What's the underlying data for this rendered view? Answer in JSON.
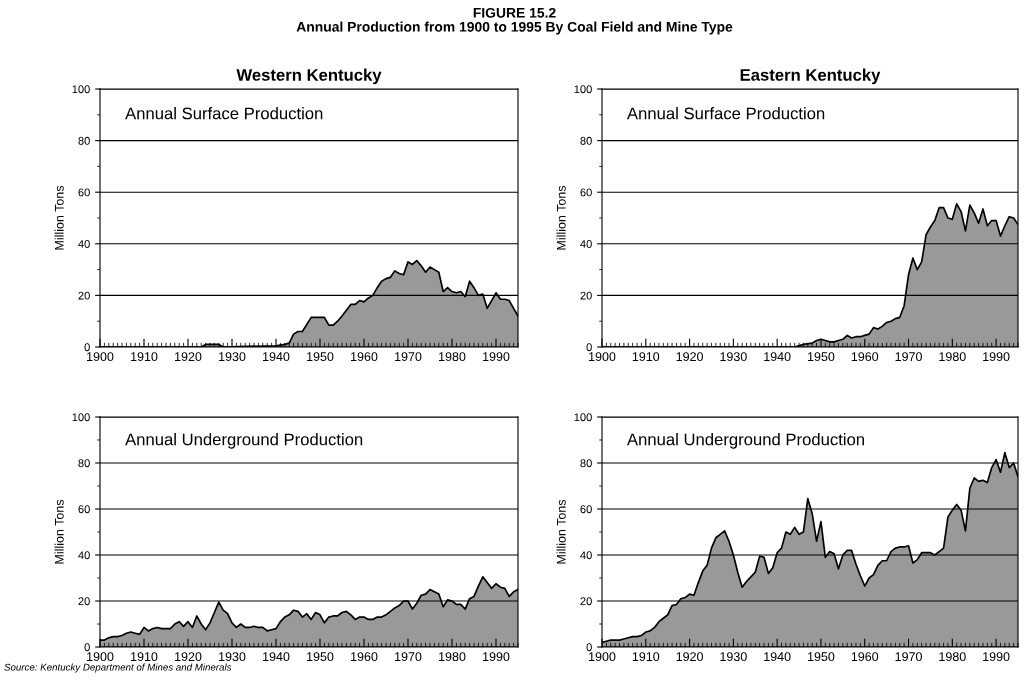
{
  "chart_data": [
    {
      "type": "area",
      "title": "Western Kentucky",
      "ylabel": "Million Tons",
      "annotations": [
        "Annual Surface Production",
        "FIGURE 15.2",
        "Annual Production from 1900 to 1995 By Coal Field and Mine Type"
      ],
      "x": [
        1900,
        1923,
        1924,
        1927,
        1928,
        1940,
        1942,
        1943,
        1944,
        1945,
        1946,
        1948,
        1950,
        1951,
        1952,
        1953,
        1954,
        1955,
        1957,
        1958,
        1959,
        1960,
        1961,
        1962,
        1963,
        1964,
        1965,
        1966,
        1967,
        1968,
        1969,
        1970,
        1971,
        1972,
        1973,
        1974,
        1975,
        1976,
        1977,
        1978,
        1979,
        1980,
        1981,
        1982,
        1983,
        1984,
        1985,
        1986,
        1987,
        1988,
        1989,
        1990,
        1991,
        1992,
        1993,
        1994,
        1995
      ],
      "series": [
        {
          "color": "#999999",
          "values": [
            0,
            0,
            1,
            1,
            0,
            0.5,
            1,
            1.5,
            5,
            6,
            6,
            11.5,
            11.5,
            11.5,
            8.5,
            8.5,
            10,
            12,
            16.5,
            16.5,
            18,
            17.5,
            19,
            20,
            23,
            25.5,
            26.5,
            27,
            29.5,
            28.5,
            28,
            33,
            32,
            33.5,
            31.5,
            29,
            31,
            30,
            29,
            21.5,
            23,
            21.5,
            21,
            21.5,
            19.5,
            25.5,
            23,
            20,
            20.5,
            15,
            18,
            21,
            18.5,
            18.5,
            18,
            15,
            12
          ]
        }
      ],
      "xlim": [
        1900,
        1995
      ],
      "ylim": [
        0,
        100
      ],
      "xticks": [
        1900,
        1910,
        1920,
        1930,
        1940,
        1950,
        1960,
        1970,
        1980,
        1990
      ],
      "yticks": [
        0,
        20,
        40,
        60,
        80,
        100
      ],
      "grid": "y"
    },
    {
      "type": "area",
      "title": "Eastern Kentucky",
      "ylabel": "Million Tons",
      "annotations": [
        "Annual Surface Production"
      ],
      "x": [
        1900,
        1944,
        1946,
        1948,
        1949,
        1950,
        1951,
        1952,
        1953,
        1954,
        1955,
        1956,
        1957,
        1958,
        1959,
        1960,
        1961,
        1962,
        1963,
        1964,
        1965,
        1966,
        1967,
        1968,
        1969,
        1970,
        1971,
        1972,
        1973,
        1974,
        1975,
        1976,
        1977,
        1978,
        1979,
        1980,
        1981,
        1982,
        1983,
        1984,
        1985,
        1986,
        1987,
        1988,
        1989,
        1990,
        1991,
        1992,
        1993,
        1994,
        1995
      ],
      "series": [
        {
          "color": "#999999",
          "values": [
            0,
            0,
            1,
            1.5,
            2.5,
            3,
            2.5,
            2,
            2,
            2.5,
            3,
            4.5,
            3.5,
            4,
            4,
            4.5,
            5,
            7.5,
            7,
            8,
            9.5,
            10,
            11,
            11.5,
            16,
            28,
            34.5,
            30,
            33,
            43.5,
            46.5,
            49,
            54,
            54,
            50,
            49.5,
            55.5,
            52.5,
            45,
            55,
            52,
            48,
            53.5,
            47,
            49,
            49,
            43,
            47,
            50.5,
            50,
            47.5
          ]
        }
      ],
      "xlim": [
        1900,
        1995
      ],
      "ylim": [
        0,
        100
      ],
      "xticks": [
        1900,
        1910,
        1920,
        1930,
        1940,
        1950,
        1960,
        1970,
        1980,
        1990
      ],
      "yticks": [
        0,
        20,
        40,
        60,
        80,
        100
      ],
      "grid": "y"
    },
    {
      "type": "area",
      "ylabel": "Million Tons",
      "annotations": [
        "Annual Underground Production",
        "Source: Kentucky Department of Mines and Minerals"
      ],
      "x": [
        1900,
        1901,
        1902,
        1903,
        1904,
        1905,
        1906,
        1907,
        1908,
        1909,
        1910,
        1911,
        1912,
        1913,
        1914,
        1915,
        1916,
        1917,
        1918,
        1919,
        1920,
        1921,
        1922,
        1923,
        1924,
        1925,
        1926,
        1927,
        1928,
        1929,
        1930,
        1931,
        1932,
        1933,
        1934,
        1935,
        1936,
        1937,
        1938,
        1939,
        1940,
        1941,
        1942,
        1943,
        1944,
        1945,
        1946,
        1947,
        1948,
        1949,
        1950,
        1951,
        1952,
        1953,
        1954,
        1955,
        1956,
        1957,
        1958,
        1959,
        1960,
        1961,
        1962,
        1963,
        1964,
        1965,
        1966,
        1967,
        1968,
        1969,
        1970,
        1971,
        1972,
        1973,
        1974,
        1975,
        1976,
        1977,
        1978,
        1979,
        1980,
        1981,
        1982,
        1983,
        1984,
        1985,
        1986,
        1987,
        1988,
        1989,
        1990,
        1991,
        1992,
        1993,
        1994,
        1995
      ],
      "series": [
        {
          "color": "#999999",
          "values": [
            3,
            3,
            4,
            4.5,
            4.5,
            5,
            6,
            6.5,
            6,
            5.5,
            8.5,
            7,
            8,
            8.5,
            8,
            8,
            8,
            10,
            11,
            9,
            11,
            8.5,
            13.5,
            10,
            7.5,
            10.5,
            15,
            19.5,
            16,
            14.5,
            10.5,
            8.5,
            10,
            8.5,
            8.5,
            9,
            8.5,
            8.5,
            7,
            7.5,
            8,
            11,
            13,
            14,
            16,
            15.5,
            13,
            14.5,
            12,
            15,
            14,
            10.5,
            13,
            13.5,
            13.5,
            15,
            15.5,
            14,
            12,
            13,
            13,
            12,
            12,
            13,
            13,
            14,
            15.5,
            17,
            18,
            20,
            20,
            16.5,
            19,
            22.5,
            23,
            25,
            24,
            23,
            17.5,
            20.5,
            20,
            18.5,
            18.5,
            16.5,
            21,
            22,
            26.5,
            30.5,
            28,
            25.5,
            27.5,
            26,
            25.5,
            22,
            24,
            25
          ]
        }
      ],
      "xlim": [
        1900,
        1995
      ],
      "ylim": [
        0,
        100
      ],
      "xticks": [
        1900,
        1910,
        1920,
        1930,
        1940,
        1950,
        1960,
        1970,
        1980,
        1990
      ],
      "yticks": [
        0,
        20,
        40,
        60,
        80,
        100
      ],
      "grid": "y"
    },
    {
      "type": "area",
      "ylabel": "Million Tons",
      "annotations": [
        "Annual Underground Production"
      ],
      "x": [
        1900,
        1901,
        1902,
        1903,
        1904,
        1905,
        1906,
        1907,
        1908,
        1909,
        1910,
        1911,
        1912,
        1913,
        1914,
        1915,
        1916,
        1917,
        1918,
        1919,
        1920,
        1921,
        1922,
        1923,
        1924,
        1925,
        1926,
        1927,
        1928,
        1929,
        1930,
        1931,
        1932,
        1933,
        1934,
        1935,
        1936,
        1937,
        1938,
        1939,
        1940,
        1941,
        1942,
        1943,
        1944,
        1945,
        1946,
        1947,
        1948,
        1949,
        1950,
        1951,
        1952,
        1953,
        1954,
        1955,
        1956,
        1957,
        1958,
        1959,
        1960,
        1961,
        1962,
        1963,
        1964,
        1965,
        1966,
        1967,
        1968,
        1969,
        1970,
        1971,
        1972,
        1973,
        1974,
        1975,
        1976,
        1977,
        1978,
        1979,
        1980,
        1981,
        1982,
        1983,
        1984,
        1985,
        1986,
        1987,
        1988,
        1989,
        1990,
        1991,
        1992,
        1993,
        1994,
        1995
      ],
      "series": [
        {
          "color": "#999999",
          "values": [
            2,
            2.5,
            3,
            3,
            3,
            3.5,
            4,
            4.5,
            4.5,
            5,
            6.5,
            7,
            8.5,
            11,
            12.5,
            14,
            18,
            18.5,
            21,
            21.5,
            23,
            22.5,
            28,
            33,
            35.5,
            43,
            47.5,
            49,
            50.5,
            46,
            40,
            32.5,
            26,
            28.5,
            30.5,
            32.5,
            39.5,
            39,
            32,
            34.5,
            41,
            43,
            50,
            49,
            52,
            49,
            50,
            64.5,
            58,
            46,
            54.5,
            39,
            41.5,
            40.5,
            34,
            40,
            42,
            42,
            36,
            31,
            26.5,
            30,
            31.5,
            35.5,
            37.5,
            37.5,
            41.5,
            43,
            43.5,
            43.5,
            44,
            36.5,
            38,
            41,
            41,
            41,
            40,
            41.5,
            43,
            56.5,
            59.5,
            62,
            59.5,
            50.5,
            69,
            73.5,
            72,
            72.5,
            71.5,
            78,
            81.5,
            76,
            84.5,
            78,
            80,
            74
          ]
        }
      ],
      "xlim": [
        1900,
        1995
      ],
      "ylim": [
        0,
        100
      ],
      "xticks": [
        1900,
        1910,
        1920,
        1930,
        1940,
        1950,
        1960,
        1970,
        1980,
        1990
      ],
      "yticks": [
        0,
        20,
        40,
        60,
        80,
        100
      ],
      "grid": "y"
    }
  ]
}
